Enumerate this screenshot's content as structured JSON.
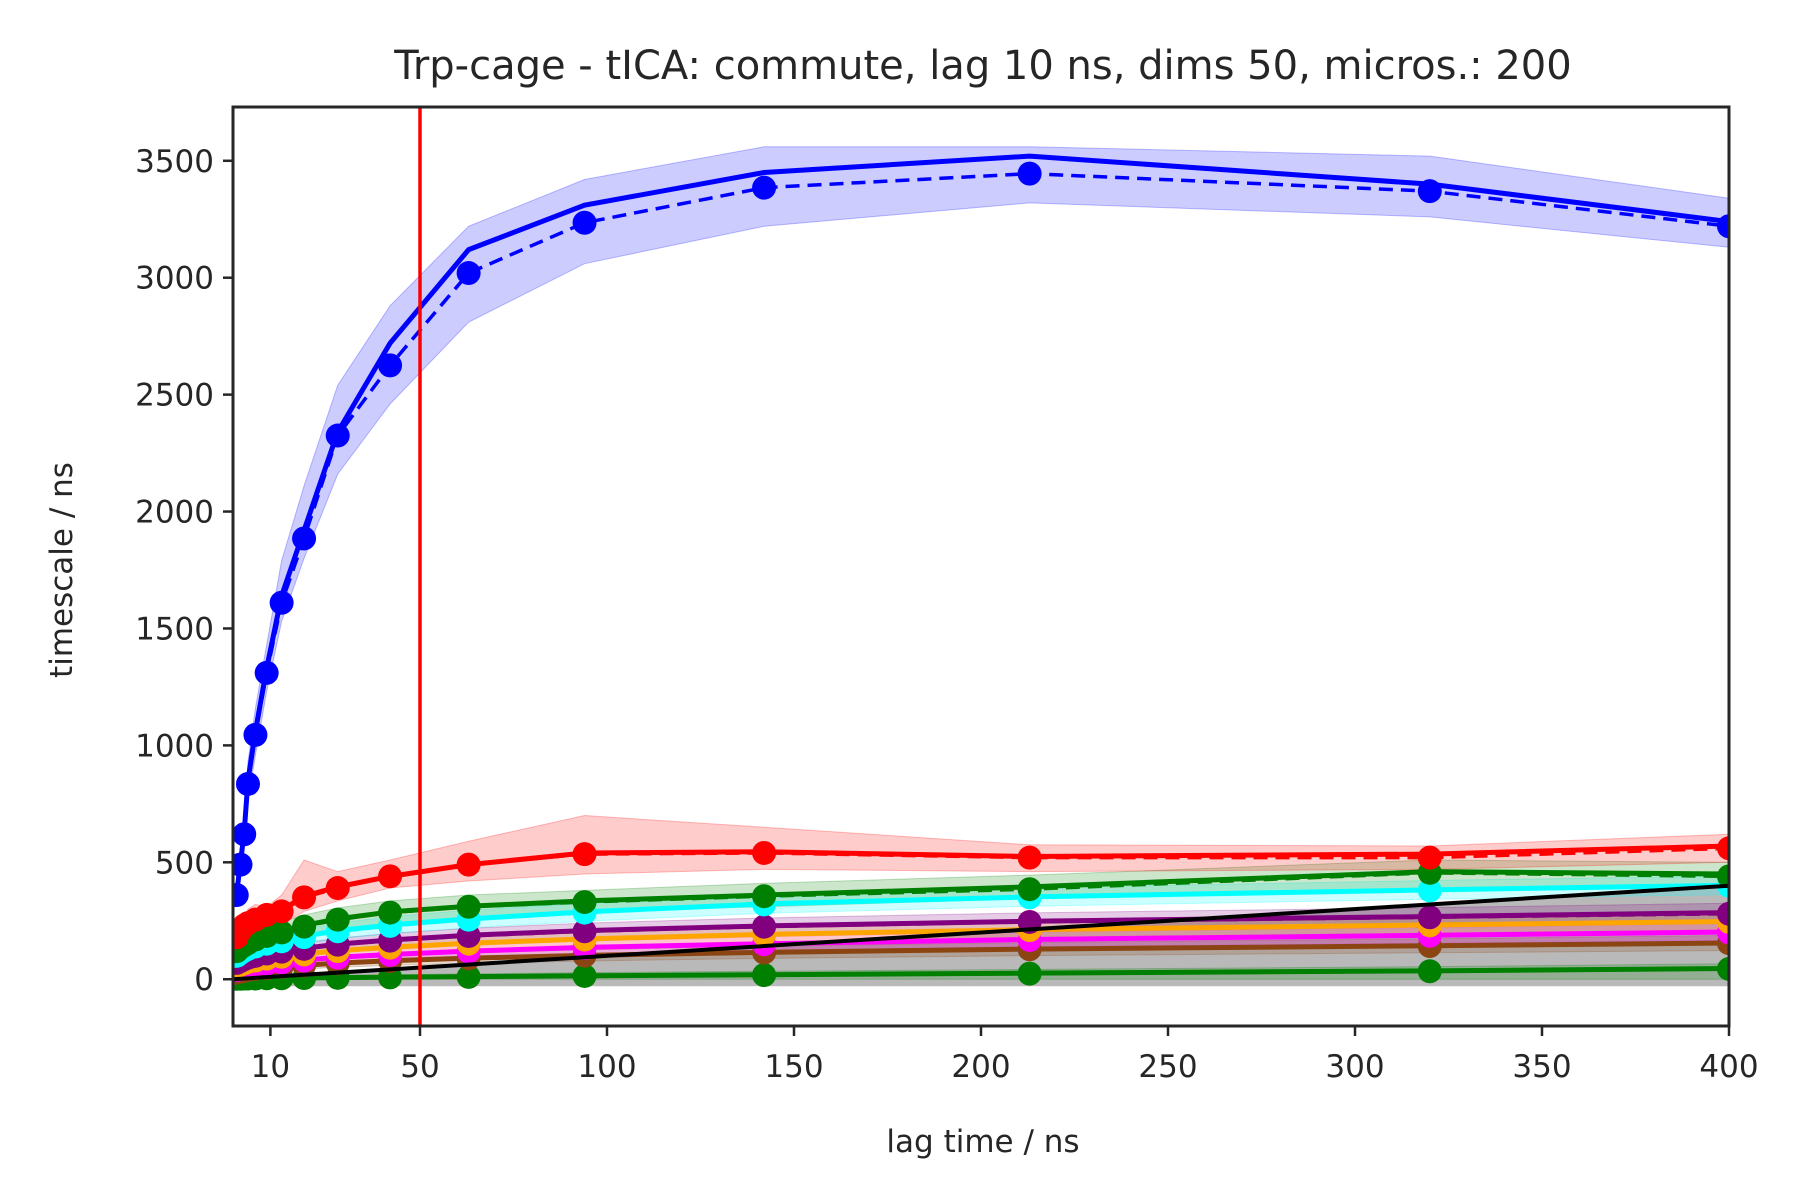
{
  "chart_data": {
    "type": "line",
    "title": "Trp-cage - tICA: commute, lag 10 ns, dims 50, micros.: 200",
    "xlabel": "lag time / ns",
    "ylabel": "timescale / ns",
    "xlim": [
      0,
      400
    ],
    "ylim": [
      -200,
      3730
    ],
    "xticks": [
      10,
      50,
      100,
      150,
      200,
      250,
      300,
      350,
      400
    ],
    "yticks": [
      0,
      500,
      1000,
      1500,
      2000,
      2500,
      3000,
      3500
    ],
    "grid": false,
    "legend": "none",
    "vline": {
      "x": 50,
      "color": "#ff0000"
    },
    "x": [
      1,
      2,
      3,
      4,
      6,
      9,
      13,
      19,
      28,
      42,
      63,
      94,
      142,
      213,
      320,
      400
    ],
    "reference_line": {
      "description": "timescale = lag time",
      "color": "#000000",
      "x": [
        0,
        400
      ],
      "y": [
        0,
        400
      ]
    },
    "series": [
      {
        "color": "#0000ff",
        "marked": [
          360,
          490,
          620,
          835,
          1045,
          1310,
          1610,
          1885,
          2325,
          2625,
          3020,
          3235,
          3385,
          3445,
          3370,
          3220
        ],
        "mean": [
          370,
          500,
          630,
          850,
          1060,
          1330,
          1640,
          1920,
          2340,
          2720,
          3120,
          3310,
          3450,
          3520,
          3400,
          3240
        ],
        "lower": [
          320,
          440,
          560,
          760,
          960,
          1230,
          1530,
          1800,
          2160,
          2460,
          2810,
          3060,
          3220,
          3320,
          3260,
          3130
        ],
        "upper": [
          410,
          560,
          690,
          930,
          1160,
          1430,
          1790,
          2110,
          2540,
          2880,
          3220,
          3420,
          3560,
          3560,
          3520,
          3340
        ]
      },
      {
        "color": "#ff0000",
        "marked": [
          180,
          210,
          230,
          240,
          255,
          275,
          290,
          350,
          390,
          440,
          490,
          535,
          540,
          520,
          520,
          560
        ],
        "mean": [
          190,
          215,
          235,
          245,
          260,
          280,
          295,
          355,
          395,
          440,
          490,
          540,
          545,
          525,
          535,
          570
        ],
        "lower": [
          150,
          175,
          195,
          200,
          215,
          200,
          235,
          290,
          335,
          390,
          420,
          450,
          470,
          460,
          470,
          500
        ],
        "upper": [
          230,
          255,
          275,
          300,
          320,
          310,
          360,
          510,
          460,
          510,
          590,
          700,
          650,
          575,
          570,
          620
        ]
      },
      {
        "color": "#008000",
        "marked": [
          120,
          135,
          145,
          155,
          170,
          185,
          200,
          225,
          255,
          285,
          310,
          330,
          355,
          385,
          455,
          440
        ],
        "mean": [
          125,
          140,
          150,
          160,
          175,
          190,
          205,
          230,
          258,
          288,
          312,
          335,
          360,
          395,
          460,
          450
        ],
        "lower": [
          95,
          110,
          118,
          128,
          140,
          150,
          165,
          185,
          210,
          240,
          265,
          290,
          310,
          345,
          390,
          400
        ],
        "upper": [
          155,
          170,
          180,
          190,
          210,
          225,
          245,
          275,
          305,
          335,
          360,
          380,
          410,
          445,
          510,
          500
        ]
      },
      {
        "color": "#00ffff",
        "marked": [
          100,
          112,
          122,
          130,
          140,
          152,
          162,
          180,
          205,
          228,
          255,
          285,
          320,
          350,
          380,
          400
        ],
        "mean": [
          105,
          116,
          126,
          134,
          144,
          156,
          166,
          184,
          208,
          232,
          258,
          288,
          322,
          352,
          382,
          402
        ],
        "lower": [
          80,
          92,
          102,
          108,
          118,
          128,
          138,
          152,
          172,
          195,
          220,
          248,
          282,
          312,
          342,
          362
        ],
        "upper": [
          130,
          140,
          150,
          160,
          170,
          184,
          194,
          214,
          240,
          268,
          295,
          325,
          362,
          392,
          422,
          442
        ]
      },
      {
        "color": "#800080",
        "marked": [
          70,
          78,
          86,
          92,
          100,
          110,
          118,
          130,
          148,
          165,
          185,
          205,
          225,
          245,
          265,
          280
        ],
        "mean": [
          72,
          80,
          88,
          94,
          102,
          112,
          120,
          132,
          150,
          168,
          188,
          208,
          228,
          248,
          268,
          285
        ],
        "lower": [
          55,
          62,
          70,
          75,
          82,
          90,
          98,
          108,
          124,
          140,
          158,
          176,
          194,
          212,
          230,
          245
        ],
        "upper": [
          90,
          98,
          106,
          114,
          122,
          134,
          142,
          156,
          176,
          196,
          218,
          240,
          262,
          284,
          306,
          325
        ]
      },
      {
        "color": "#ffa500",
        "marked": [
          55,
          62,
          68,
          74,
          80,
          88,
          96,
          106,
          120,
          135,
          152,
          170,
          190,
          210,
          230,
          245
        ],
        "mean": [
          57,
          64,
          70,
          76,
          82,
          90,
          98,
          108,
          122,
          137,
          154,
          172,
          192,
          212,
          232,
          247
        ],
        "lower": [
          42,
          48,
          54,
          58,
          64,
          70,
          78,
          86,
          98,
          112,
          126,
          142,
          160,
          178,
          196,
          210
        ],
        "upper": [
          72,
          80,
          86,
          94,
          100,
          110,
          118,
          130,
          146,
          162,
          182,
          202,
          224,
          246,
          268,
          284
        ]
      },
      {
        "color": "#ff00ff",
        "marked": [
          40,
          45,
          50,
          55,
          60,
          66,
          72,
          80,
          92,
          104,
          118,
          134,
          150,
          168,
          186,
          200
        ],
        "mean": [
          42,
          47,
          52,
          57,
          62,
          68,
          74,
          82,
          94,
          106,
          120,
          136,
          152,
          170,
          188,
          202
        ],
        "lower": [
          30,
          34,
          38,
          42,
          46,
          50,
          56,
          62,
          72,
          82,
          94,
          108,
          122,
          138,
          154,
          166
        ],
        "upper": [
          54,
          60,
          66,
          72,
          78,
          86,
          92,
          102,
          116,
          130,
          146,
          164,
          182,
          202,
          222,
          238
        ]
      },
      {
        "color": "#8b4513",
        "marked": [
          28,
          32,
          36,
          40,
          44,
          48,
          53,
          59,
          68,
          78,
          89,
          101,
          114,
          128,
          142,
          154
        ],
        "mean": [
          29,
          33,
          37,
          41,
          45,
          49,
          54,
          60,
          69,
          79,
          90,
          102,
          115,
          129,
          143,
          155
        ],
        "lower": [
          20,
          23,
          26,
          29,
          32,
          35,
          39,
          44,
          51,
          59,
          68,
          78,
          89,
          101,
          113,
          123
        ],
        "upper": [
          38,
          43,
          48,
          53,
          58,
          63,
          69,
          76,
          87,
          99,
          112,
          126,
          141,
          157,
          173,
          187
        ]
      },
      {
        "color": "#008000",
        "marked": [
          2,
          2,
          3,
          3,
          3,
          4,
          4,
          5,
          6,
          8,
          10,
          14,
          18,
          24,
          34,
          44
        ],
        "mean": [
          3,
          3,
          3,
          4,
          4,
          5,
          5,
          6,
          7,
          9,
          11,
          15,
          19,
          26,
          36,
          46
        ],
        "lower": [
          0,
          0,
          0,
          0,
          0,
          0,
          0,
          0,
          0,
          0,
          0,
          0,
          0,
          0,
          0,
          0
        ],
        "upper": [
          8,
          8,
          9,
          10,
          11,
          12,
          13,
          14,
          16,
          19,
          23,
          28,
          34,
          42,
          54,
          66
        ]
      }
    ]
  }
}
